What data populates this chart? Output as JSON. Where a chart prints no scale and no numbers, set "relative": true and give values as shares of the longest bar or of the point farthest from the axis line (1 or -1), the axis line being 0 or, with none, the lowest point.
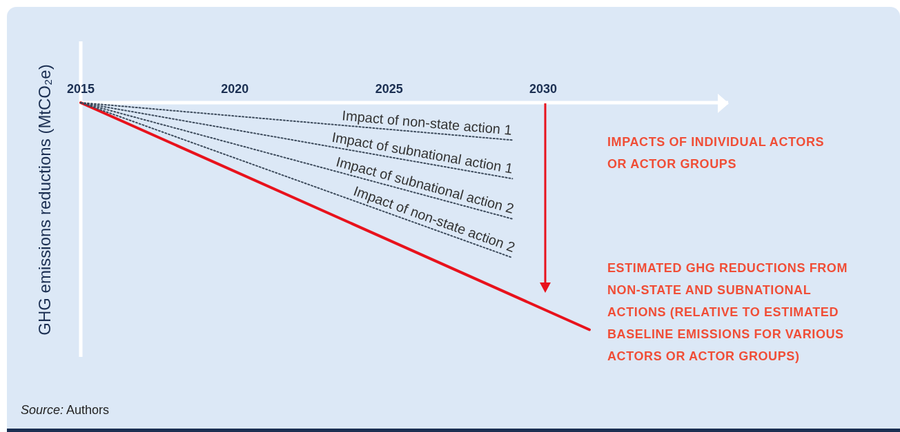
{
  "chart_data": {
    "type": "line",
    "relative": true,
    "ylabel": "GHG emissions reductions (MtCO₂e)",
    "xlim": [
      2015,
      2036
    ],
    "xticks": [
      2015,
      2020,
      2025,
      2030
    ],
    "legend": false,
    "marker": "none",
    "annotations": [
      "IMPACTS OF INDIVIDUAL ACTORS OR ACTOR GROUPS",
      "ESTIMATED GHG REDUCTIONS FROM NON-STATE AND SUBNATIONAL ACTIONS (RELATIVE TO ESTIMATED BASELINE EMISSIONS FOR VARIOUS ACTORS OR ACTOR GROUPS)",
      "Source: Authors"
    ],
    "series": [
      {
        "name": "Impact of non-state action 1",
        "color": "#3d4b5c",
        "line_style": "dotted",
        "x": [
          2015,
          2029
        ],
        "values": [
          0,
          -0.165
        ]
      },
      {
        "name": "Impact of subnational action 1",
        "color": "#3d4b5c",
        "line_style": "dotted",
        "x": [
          2015,
          2029
        ],
        "values": [
          0,
          -0.335
        ]
      },
      {
        "name": "Impact of subnational action 2",
        "color": "#3d4b5c",
        "line_style": "dotted",
        "x": [
          2015,
          2029
        ],
        "values": [
          0,
          -0.512
        ]
      },
      {
        "name": "Impact of non-state action 2",
        "color": "#3d4b5c",
        "line_style": "dotted",
        "x": [
          2015,
          2029
        ],
        "values": [
          0,
          -0.683
        ]
      },
      {
        "color": "#e8121c",
        "line_style": "solid",
        "x": [
          2015,
          2031.5
        ],
        "values": [
          0,
          -1
        ]
      }
    ]
  }
}
